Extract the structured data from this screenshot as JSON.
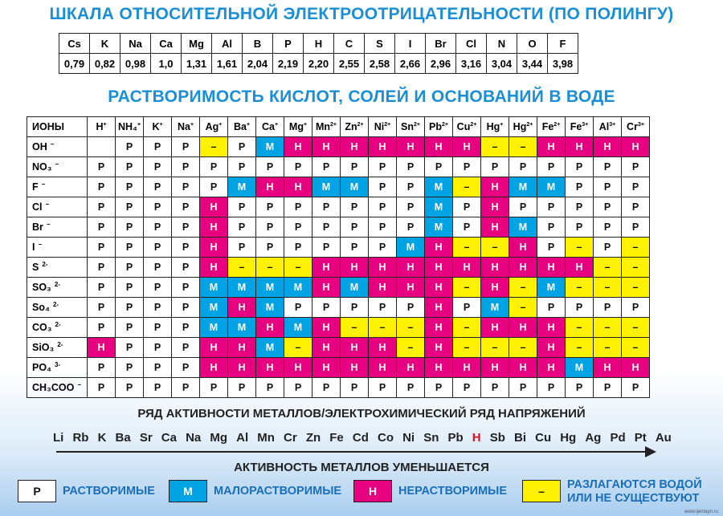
{
  "title1": "ШКАЛА ОТНОСИТЕЛЬНОЙ ЭЛЕКТРООТРИЦАТЕЛЬНОСТИ (ПО ПОЛИНГУ)",
  "electroneg": {
    "elements": [
      "Cs",
      "K",
      "Na",
      "Ca",
      "Mg",
      "Al",
      "B",
      "P",
      "H",
      "C",
      "S",
      "I",
      "Br",
      "Cl",
      "N",
      "O",
      "F"
    ],
    "values": [
      "0,79",
      "0,82",
      "0,98",
      "1,0",
      "1,31",
      "1,61",
      "2,04",
      "2,19",
      "2,20",
      "2,55",
      "2,58",
      "2,66",
      "2,96",
      "3,16",
      "3,04",
      "3,44",
      "3,98"
    ]
  },
  "title2": "РАСТВОРИМОСТЬ КИСЛОТ, СОЛЕЙ И ОСНОВАНИЙ В ВОДЕ",
  "solubility": {
    "corner": "ИОНЫ",
    "cations": [
      {
        "s": "H",
        "c": "+"
      },
      {
        "s": "NH₄",
        "c": "+"
      },
      {
        "s": "K",
        "c": "+"
      },
      {
        "s": "Na",
        "c": "+"
      },
      {
        "s": "Ag",
        "c": "+"
      },
      {
        "s": "Ba",
        "c": "+"
      },
      {
        "s": "Ca",
        "c": "+"
      },
      {
        "s": "Mg",
        "c": "+"
      },
      {
        "s": "Mn",
        "c": "2+"
      },
      {
        "s": "Zn",
        "c": "2+"
      },
      {
        "s": "Ni",
        "c": "2+"
      },
      {
        "s": "Sn",
        "c": "2+"
      },
      {
        "s": "Pb",
        "c": "2+"
      },
      {
        "s": "Cu",
        "c": "2+"
      },
      {
        "s": "Hg",
        "c": "+"
      },
      {
        "s": "Hg",
        "c": "2+"
      },
      {
        "s": "Fe",
        "c": "2+"
      },
      {
        "s": "Fe",
        "c": "3+"
      },
      {
        "s": "Al",
        "c": "3+"
      },
      {
        "s": "Cr",
        "c": "3+"
      }
    ],
    "rows": [
      {
        "ion": "OH",
        "charge": "−",
        "cells": [
          "",
          "Р",
          "Р",
          "Р",
          "–",
          "Р",
          "М",
          "Н",
          "Н",
          "Н",
          "Н",
          "Н",
          "Н",
          "Н",
          "–",
          "–",
          "Н",
          "Н",
          "Н",
          "Н"
        ]
      },
      {
        "ion": "NO₃",
        "charge": "−",
        "cells": [
          "Р",
          "Р",
          "Р",
          "Р",
          "Р",
          "Р",
          "Р",
          "Р",
          "Р",
          "Р",
          "Р",
          "Р",
          "Р",
          "Р",
          "Р",
          "Р",
          "Р",
          "Р",
          "Р",
          "Р"
        ]
      },
      {
        "ion": "F",
        "charge": "−",
        "cells": [
          "Р",
          "Р",
          "Р",
          "Р",
          "Р",
          "М",
          "Н",
          "Н",
          "М",
          "М",
          "Р",
          "Р",
          "М",
          "–",
          "Н",
          "М",
          "М",
          "Р",
          "Р",
          "Р"
        ]
      },
      {
        "ion": "Cl",
        "charge": "−",
        "cells": [
          "Р",
          "Р",
          "Р",
          "Р",
          "Н",
          "Р",
          "Р",
          "Р",
          "Р",
          "Р",
          "Р",
          "Р",
          "М",
          "Р",
          "Н",
          "Р",
          "Р",
          "Р",
          "Р",
          "Р"
        ]
      },
      {
        "ion": "Br",
        "charge": "−",
        "cells": [
          "Р",
          "Р",
          "Р",
          "Р",
          "Н",
          "Р",
          "Р",
          "Р",
          "Р",
          "Р",
          "Р",
          "Р",
          "М",
          "Р",
          "Н",
          "М",
          "Р",
          "Р",
          "Р",
          "Р"
        ]
      },
      {
        "ion": "I",
        "charge": "−",
        "cells": [
          "Р",
          "Р",
          "Р",
          "Р",
          "Н",
          "Р",
          "Р",
          "Р",
          "Р",
          "Р",
          "Р",
          "М",
          "Н",
          "–",
          "–",
          "Н",
          "Р",
          "–",
          "Р",
          "–"
        ]
      },
      {
        "ion": "S",
        "charge": "2-",
        "cells": [
          "Р",
          "Р",
          "Р",
          "Р",
          "Н",
          "–",
          "–",
          "–",
          "Н",
          "Н",
          "Н",
          "Н",
          "Н",
          "Н",
          "Н",
          "Н",
          "Н",
          "Н",
          "–",
          "–"
        ]
      },
      {
        "ion": "SO₃",
        "charge": "2-",
        "cells": [
          "Р",
          "Р",
          "Р",
          "Р",
          "М",
          "М",
          "М",
          "М",
          "Н",
          "М",
          "Н",
          "Н",
          "Н",
          "–",
          "Н",
          "–",
          "М",
          "–",
          "–",
          "–"
        ]
      },
      {
        "ion": "So₄",
        "charge": "2-",
        "cells": [
          "Р",
          "Р",
          "Р",
          "Р",
          "М",
          "Н",
          "М",
          "Р",
          "Р",
          "Р",
          "Р",
          "Р",
          "Н",
          "Р",
          "М",
          "–",
          "Р",
          "Р",
          "Р",
          "Р"
        ]
      },
      {
        "ion": "CO₃",
        "charge": "2-",
        "cells": [
          "Р",
          "Р",
          "Р",
          "Р",
          "М",
          "М",
          "Н",
          "М",
          "Н",
          "–",
          "–",
          "–",
          "Н",
          "–",
          "Н",
          "Н",
          "Н",
          "–",
          "–",
          "–"
        ]
      },
      {
        "ion": "SiO₃",
        "charge": "2-",
        "cells": [
          "Н",
          "Р",
          "Р",
          "Р",
          "Н",
          "Н",
          "М",
          "–",
          "Н",
          "Н",
          "Н",
          "–",
          "Н",
          "–",
          "–",
          "–",
          "Н",
          "–",
          "–",
          "–"
        ]
      },
      {
        "ion": "PO₄",
        "charge": "3-",
        "cells": [
          "Р",
          "Р",
          "Р",
          "Р",
          "Н",
          "Н",
          "Н",
          "Н",
          "Н",
          "Н",
          "Н",
          "Н",
          "Н",
          "Н",
          "Н",
          "Н",
          "Н",
          "М",
          "Н",
          "Н"
        ]
      },
      {
        "ion": "CH₃COO",
        "charge": "−",
        "cells": [
          "Р",
          "Р",
          "Р",
          "Р",
          "Р",
          "Р",
          "Р",
          "Р",
          "Р",
          "Р",
          "Р",
          "Р",
          "Р",
          "Р",
          "Р",
          "Р",
          "Р",
          "Р",
          "Р",
          "Р"
        ]
      }
    ]
  },
  "activity": {
    "title": "РЯД АКТИВНОСТИ МЕТАЛЛОВ/ЭЛЕКТРОХИМИЧЕСКИЙ РЯД НАПРЯЖЕНИЙ",
    "series": [
      "Li",
      "Rb",
      "K",
      "Ba",
      "Sr",
      "Ca",
      "Na",
      "Mg",
      "Al",
      "Mn",
      "Cr",
      "Zn",
      "Fe",
      "Cd",
      "Co",
      "Ni",
      "Sn",
      "Pb",
      "H",
      "Sb",
      "Bi",
      "Cu",
      "Hg",
      "Ag",
      "Pd",
      "Pt",
      "Au"
    ],
    "highlight": "H",
    "highlight_color": "#d8141f",
    "subtitle": "АКТИВНОСТЬ МЕТАЛЛОВ УМЕНЬШАЕТСЯ"
  },
  "legend": [
    {
      "symbol": "Р",
      "label": "РАСТВОРИМЫЕ",
      "color": "#ffffff"
    },
    {
      "symbol": "М",
      "label": "МАЛОРАСТВОРИМЫЕ",
      "color": "#00a3e4"
    },
    {
      "symbol": "Н",
      "label": "НЕРАСТВОРИМЫЕ",
      "color": "#e7007f"
    },
    {
      "symbol": "–",
      "label": "РАЗЛАГАЮТСЯ ВОДОЙ ИЛИ НЕ СУЩЕСТВУЮТ",
      "color": "#fff200"
    }
  ],
  "watermark": "www.ijentayn.ru"
}
